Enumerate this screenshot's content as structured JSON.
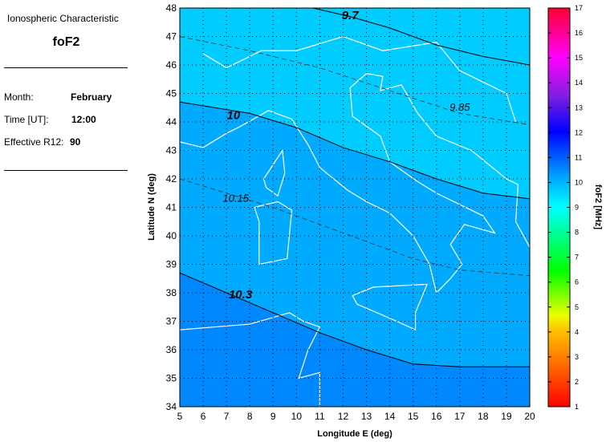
{
  "info": {
    "heading": "Ionospheric Characteristic",
    "characteristic": "foF2",
    "month_label": "Month:",
    "month": "February",
    "time_label": "Time [UT]:",
    "time": "12:00",
    "r12_label": "Effective R12:",
    "r12": "90"
  },
  "chart_data": {
    "type": "contour",
    "xlabel": "Longitude E (deg)",
    "ylabel": "Latitude N (deg)",
    "xlim": [
      5,
      20
    ],
    "ylim": [
      34,
      48
    ],
    "xticks": [
      5,
      6,
      7,
      8,
      9,
      10,
      11,
      12,
      13,
      14,
      15,
      16,
      17,
      18,
      19,
      20
    ],
    "yticks": [
      34,
      35,
      36,
      37,
      38,
      39,
      40,
      41,
      42,
      43,
      44,
      45,
      46,
      47,
      48
    ],
    "grid": true,
    "region_fills": [
      {
        "range": "< 10",
        "color": "#00CCFF"
      },
      {
        "range": "10 - 10.3",
        "color": "#00AAFF"
      },
      {
        "range": "> 10.3",
        "color": "#0088FF"
      }
    ],
    "contours": [
      {
        "label": "9.7",
        "style": "solid",
        "points": [
          [
            10.7,
            48
          ],
          [
            12.3,
            47.7
          ],
          [
            14,
            47.3
          ],
          [
            16,
            46.7
          ],
          [
            18,
            46.3
          ],
          [
            20,
            46
          ]
        ]
      },
      {
        "label": "9.85",
        "style": "dashed",
        "points": [
          [
            5,
            47
          ],
          [
            8,
            46.5
          ],
          [
            11,
            45.9
          ],
          [
            14,
            45.1
          ],
          [
            17,
            44.3
          ],
          [
            20,
            43.9
          ]
        ]
      },
      {
        "label": "10",
        "style": "solid",
        "points": [
          [
            5,
            44.7
          ],
          [
            8,
            44.3
          ],
          [
            10,
            43.8
          ],
          [
            12,
            43.1
          ],
          [
            14,
            42.6
          ],
          [
            16,
            42
          ],
          [
            18,
            41.5
          ],
          [
            20,
            41.3
          ]
        ]
      },
      {
        "label": "10.15",
        "style": "dashed",
        "points": [
          [
            5,
            42
          ],
          [
            7,
            41.5
          ],
          [
            9,
            41
          ],
          [
            11,
            40.4
          ],
          [
            13,
            39.8
          ],
          [
            15,
            39.2
          ],
          [
            17,
            38.8
          ],
          [
            20,
            38.6
          ]
        ]
      },
      {
        "label": "10.3",
        "style": "solid",
        "points": [
          [
            5,
            38.7
          ],
          [
            7,
            38
          ],
          [
            9,
            37.3
          ],
          [
            11,
            36.6
          ],
          [
            13,
            36
          ],
          [
            15,
            35.5
          ],
          [
            17,
            35.4
          ],
          [
            20,
            35.4
          ]
        ]
      }
    ],
    "colorbar": {
      "label": "foF2 [MHz]",
      "range": [
        1,
        17
      ],
      "ticks": [
        1,
        2,
        3,
        4,
        5,
        6,
        7,
        8,
        9,
        10,
        11,
        12,
        13,
        14,
        15,
        16,
        17
      ]
    }
  }
}
